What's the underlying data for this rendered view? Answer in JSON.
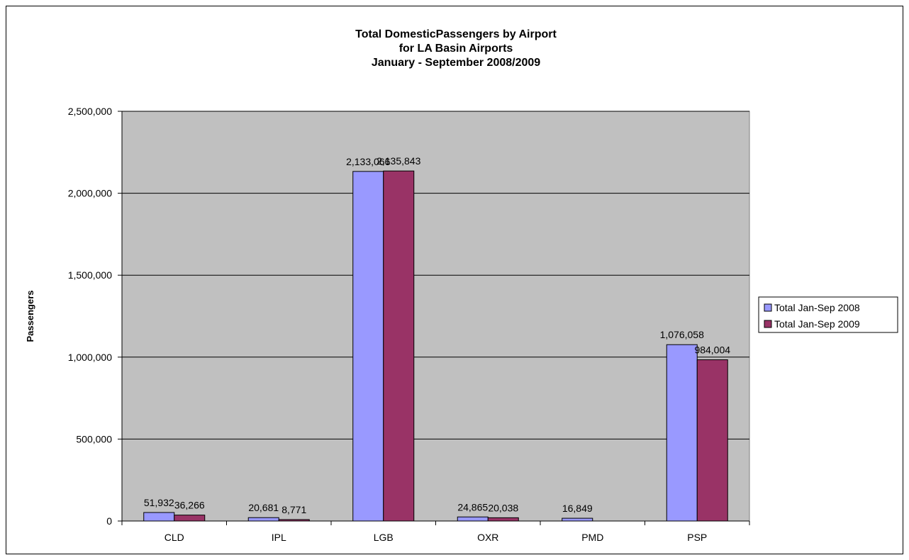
{
  "chart_data": {
    "type": "bar",
    "title": [
      "Total DomesticPassengers by Airport",
      "for LA Basin Airports",
      "January - September 2008/2009"
    ],
    "ylabel": "Passengers",
    "xlabel": "",
    "categories": [
      "CLD",
      "IPL",
      "LGB",
      "OXR",
      "PMD",
      "PSP"
    ],
    "series": [
      {
        "name": "Total Jan-Sep 2008",
        "color": "#9999ff",
        "values": [
          51932,
          20681,
          2133066,
          24865,
          16849,
          1076058
        ],
        "labels": [
          "51,932",
          "20,681",
          "2,133,066",
          "24,865",
          "16,849",
          "1,076,058"
        ]
      },
      {
        "name": "Total Jan-Sep 2009",
        "color": "#993366",
        "values": [
          36266,
          8771,
          2135843,
          20038,
          0,
          984004
        ],
        "labels": [
          "36,266",
          "8,771",
          "2,135,843",
          "20,038",
          "",
          "984,004"
        ]
      }
    ],
    "ylim": [
      0,
      2500000
    ],
    "yticks": [
      0,
      500000,
      1000000,
      1500000,
      2000000,
      2500000
    ],
    "ytick_labels": [
      "0",
      "500,000",
      "1,000,000",
      "1,500,000",
      "2,000,000",
      "2,500,000"
    ],
    "grid": true,
    "plot_background": "#c0c0c0",
    "legend_position": "right"
  }
}
